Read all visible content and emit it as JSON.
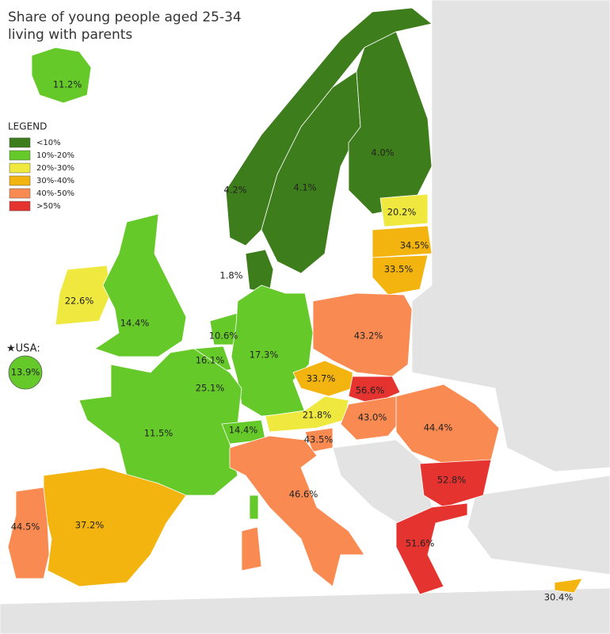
{
  "title_lines": [
    "Share of young people aged 25-34",
    "living with parents"
  ],
  "legend": {
    "title": "LEGEND",
    "items": [
      {
        "label": "<10%",
        "color": "#3e7d1b"
      },
      {
        "label": "10%-20%",
        "color": "#66c92a"
      },
      {
        "label": "20%-30%",
        "color": "#efe93f"
      },
      {
        "label": "30%-40%",
        "color": "#f4b410"
      },
      {
        "label": "40%-50%",
        "color": "#f98b52"
      },
      {
        "label": ">50%",
        "color": "#e5332f"
      }
    ]
  },
  "regions": [
    {
      "label": "11.2%",
      "color": "#66c92a"
    },
    {
      "label": "4.2%",
      "color": "#3e7d1b"
    },
    {
      "label": "4.1%",
      "color": "#3e7d1b"
    },
    {
      "label": "4.0%",
      "color": "#3e7d1b"
    },
    {
      "label": "1.8%",
      "color": "#3e7d1b"
    },
    {
      "label": "20.2%",
      "color": "#efe93f"
    },
    {
      "label": "34.5%",
      "color": "#f4b410"
    },
    {
      "label": "33.5%",
      "color": "#f4b410"
    },
    {
      "label": "22.6%",
      "color": "#efe93f"
    },
    {
      "label": "14.4%",
      "color": "#66c92a"
    },
    {
      "label": "10.6%",
      "color": "#66c92a"
    },
    {
      "label": "16.1%",
      "color": "#66c92a"
    },
    {
      "label": "25.1%",
      "color": "#efe93f"
    },
    {
      "label": "17.3%",
      "color": "#66c92a"
    },
    {
      "label": "11.5%",
      "color": "#66c92a"
    },
    {
      "label": "14.4%",
      "color": "#66c92a"
    },
    {
      "label": "43.2%",
      "color": "#f98b52"
    },
    {
      "label": "33.7%",
      "color": "#f4b410"
    },
    {
      "label": "56.6%",
      "color": "#e5332f"
    },
    {
      "label": "21.8%",
      "color": "#efe93f"
    },
    {
      "label": "43.0%",
      "color": "#f98b52"
    },
    {
      "label": "43.5%",
      "color": "#f98b52"
    },
    {
      "label": "44.4%",
      "color": "#f98b52"
    },
    {
      "label": "46.6%",
      "color": "#f98b52"
    },
    {
      "label": "52.8%",
      "color": "#e5332f"
    },
    {
      "label": "51.6%",
      "color": "#e5332f"
    },
    {
      "label": "37.2%",
      "color": "#f4b410"
    },
    {
      "label": "44.5%",
      "color": "#f98b52"
    },
    {
      "label": "30.4%",
      "color": "#f4b410"
    }
  ],
  "usa": {
    "label": "★USA:",
    "value_label": "13.9%",
    "color": "#66c92a"
  }
}
